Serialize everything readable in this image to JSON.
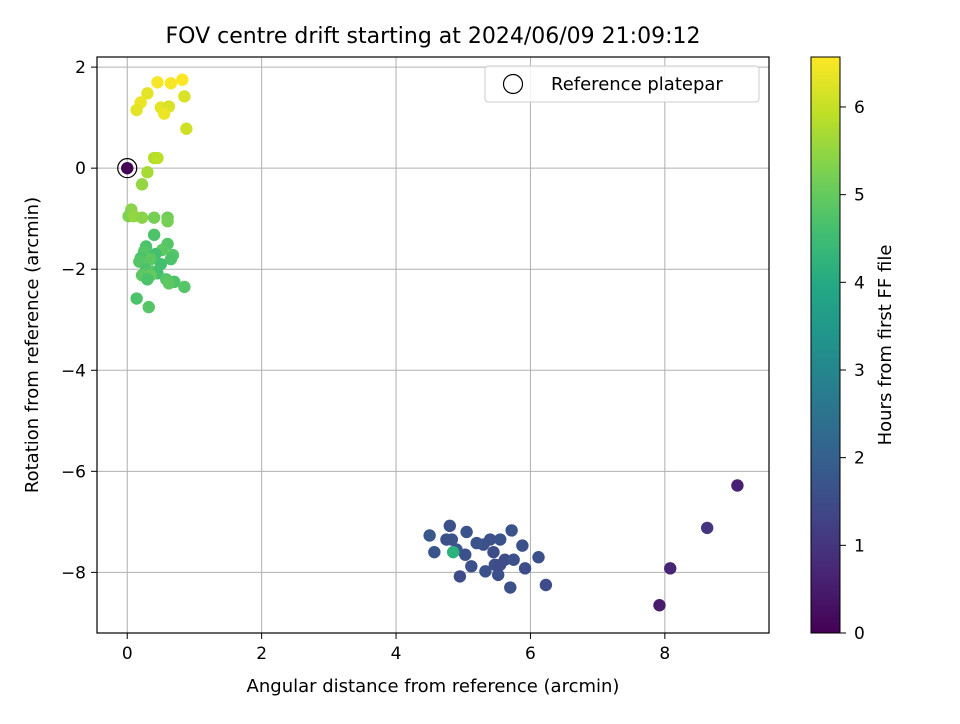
{
  "chart_data": {
    "type": "scatter",
    "title": "FOV centre drift starting at 2024/06/09 21:09:12",
    "xlabel": "Angular distance from reference (arcmin)",
    "ylabel": "Rotation from reference (arcmin)",
    "xlim": [
      -0.45,
      9.55
    ],
    "ylim": [
      -9.2,
      2.2
    ],
    "xticks": [
      0,
      2,
      4,
      6,
      8
    ],
    "yticks": [
      2,
      0,
      -2,
      -4,
      -6,
      -8
    ],
    "grid": true,
    "legend": {
      "placement": "top-right",
      "entries": [
        "Reference platepar"
      ]
    },
    "reference_point": {
      "x": 0,
      "y": 0
    },
    "colorbar": {
      "label": "Hours from first FF file",
      "range": [
        0,
        6.57
      ],
      "ticks": [
        0,
        1,
        2,
        3,
        4,
        5,
        6
      ],
      "colormap": "viridis"
    },
    "points": [
      {
        "x": 9.08,
        "y": -6.28,
        "h": 0.6
      },
      {
        "x": 8.63,
        "y": -7.12,
        "h": 1.0
      },
      {
        "x": 8.08,
        "y": -7.92,
        "h": 0.7
      },
      {
        "x": 7.92,
        "y": -8.65,
        "h": 0.5
      },
      {
        "x": 6.23,
        "y": -8.25,
        "h": 1.5
      },
      {
        "x": 6.12,
        "y": -7.7,
        "h": 1.6
      },
      {
        "x": 5.92,
        "y": -7.92,
        "h": 1.5
      },
      {
        "x": 5.88,
        "y": -7.47,
        "h": 1.6
      },
      {
        "x": 5.72,
        "y": -7.17,
        "h": 1.7
      },
      {
        "x": 5.7,
        "y": -8.3,
        "h": 1.6
      },
      {
        "x": 5.62,
        "y": -7.75,
        "h": 1.5
      },
      {
        "x": 5.55,
        "y": -7.35,
        "h": 1.7
      },
      {
        "x": 5.52,
        "y": -8.05,
        "h": 1.6
      },
      {
        "x": 5.47,
        "y": -7.85,
        "h": 1.6
      },
      {
        "x": 5.45,
        "y": -7.6,
        "h": 1.5
      },
      {
        "x": 5.4,
        "y": -7.35,
        "h": 1.6
      },
      {
        "x": 5.33,
        "y": -7.98,
        "h": 1.7
      },
      {
        "x": 5.3,
        "y": -7.45,
        "h": 1.6
      },
      {
        "x": 5.2,
        "y": -7.42,
        "h": 1.7
      },
      {
        "x": 5.12,
        "y": -7.88,
        "h": 1.6
      },
      {
        "x": 5.05,
        "y": -7.2,
        "h": 1.7
      },
      {
        "x": 5.03,
        "y": -7.65,
        "h": 1.6
      },
      {
        "x": 4.95,
        "y": -8.08,
        "h": 1.5
      },
      {
        "x": 4.9,
        "y": -7.55,
        "h": 1.8
      },
      {
        "x": 4.83,
        "y": -7.35,
        "h": 1.7
      },
      {
        "x": 4.8,
        "y": -7.08,
        "h": 1.6
      },
      {
        "x": 4.75,
        "y": -7.35,
        "h": 1.6
      },
      {
        "x": 4.57,
        "y": -7.6,
        "h": 1.7
      },
      {
        "x": 4.5,
        "y": -7.27,
        "h": 1.8
      },
      {
        "x": 4.85,
        "y": -7.6,
        "h": 4.2
      },
      {
        "x": 5.55,
        "y": -7.85,
        "h": 1.5
      },
      {
        "x": 5.75,
        "y": -7.75,
        "h": 1.6
      },
      {
        "x": 0.0,
        "y": 0.0,
        "h": 0.0
      },
      {
        "x": 0.45,
        "y": 1.7,
        "h": 6.5
      },
      {
        "x": 0.65,
        "y": 1.68,
        "h": 6.5
      },
      {
        "x": 0.82,
        "y": 1.75,
        "h": 6.6
      },
      {
        "x": 0.3,
        "y": 1.48,
        "h": 6.3
      },
      {
        "x": 0.85,
        "y": 1.42,
        "h": 6.2
      },
      {
        "x": 0.2,
        "y": 1.3,
        "h": 6.4
      },
      {
        "x": 0.14,
        "y": 1.15,
        "h": 6.3
      },
      {
        "x": 0.5,
        "y": 1.2,
        "h": 6.3
      },
      {
        "x": 0.62,
        "y": 1.22,
        "h": 6.2
      },
      {
        "x": 0.55,
        "y": 1.08,
        "h": 6.4
      },
      {
        "x": 0.88,
        "y": 0.78,
        "h": 6.1
      },
      {
        "x": 0.4,
        "y": 0.2,
        "h": 5.8
      },
      {
        "x": 0.45,
        "y": 0.2,
        "h": 5.9
      },
      {
        "x": 0.3,
        "y": -0.08,
        "h": 5.7
      },
      {
        "x": 0.22,
        "y": -0.32,
        "h": 5.5
      },
      {
        "x": 0.06,
        "y": -0.82,
        "h": 5.4
      },
      {
        "x": 0.02,
        "y": -0.95,
        "h": 5.3
      },
      {
        "x": 0.1,
        "y": -0.95,
        "h": 5.5
      },
      {
        "x": 0.22,
        "y": -0.98,
        "h": 5.4
      },
      {
        "x": 0.4,
        "y": -0.98,
        "h": 5.2
      },
      {
        "x": 0.6,
        "y": -0.98,
        "h": 5.1
      },
      {
        "x": 0.6,
        "y": -1.05,
        "h": 5.2
      },
      {
        "x": 0.4,
        "y": -1.32,
        "h": 4.7
      },
      {
        "x": 0.6,
        "y": -1.5,
        "h": 4.8
      },
      {
        "x": 0.28,
        "y": -1.55,
        "h": 4.7
      },
      {
        "x": 0.52,
        "y": -1.62,
        "h": 4.9
      },
      {
        "x": 0.25,
        "y": -1.65,
        "h": 4.8
      },
      {
        "x": 0.42,
        "y": -1.7,
        "h": 4.6
      },
      {
        "x": 0.68,
        "y": -1.72,
        "h": 4.8
      },
      {
        "x": 0.2,
        "y": -1.78,
        "h": 4.7
      },
      {
        "x": 0.35,
        "y": -1.8,
        "h": 4.9
      },
      {
        "x": 0.65,
        "y": -1.8,
        "h": 4.7
      },
      {
        "x": 0.18,
        "y": -1.85,
        "h": 4.8
      },
      {
        "x": 0.5,
        "y": -1.9,
        "h": 4.6
      },
      {
        "x": 0.28,
        "y": -2.0,
        "h": 4.7
      },
      {
        "x": 0.38,
        "y": -2.05,
        "h": 4.8
      },
      {
        "x": 0.45,
        "y": -2.08,
        "h": 4.6
      },
      {
        "x": 0.22,
        "y": -2.12,
        "h": 4.9
      },
      {
        "x": 0.35,
        "y": -2.12,
        "h": 5.0
      },
      {
        "x": 0.3,
        "y": -2.2,
        "h": 4.7
      },
      {
        "x": 0.58,
        "y": -2.2,
        "h": 4.8
      },
      {
        "x": 0.7,
        "y": -2.25,
        "h": 4.7
      },
      {
        "x": 0.62,
        "y": -2.28,
        "h": 4.9
      },
      {
        "x": 0.85,
        "y": -2.35,
        "h": 4.8
      },
      {
        "x": 0.14,
        "y": -2.58,
        "h": 4.7
      },
      {
        "x": 0.32,
        "y": -2.75,
        "h": 4.8
      }
    ]
  }
}
